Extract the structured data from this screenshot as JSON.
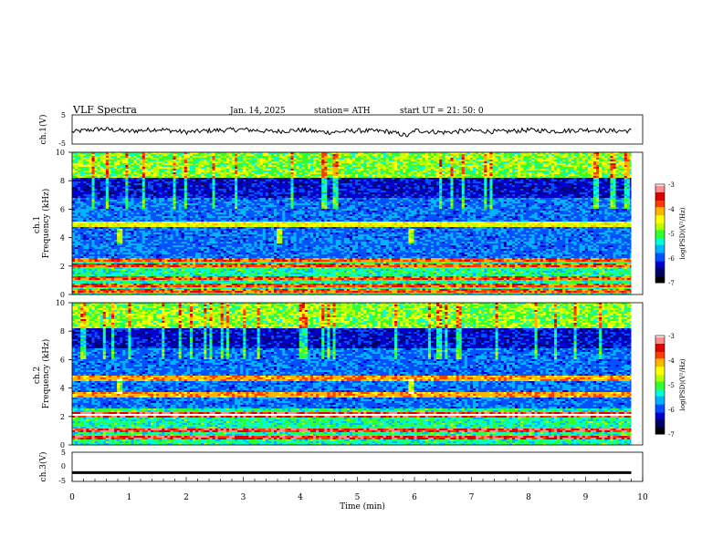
{
  "header": {
    "title": "VLF  Spectra",
    "date": "Jan.  14,  2025",
    "station": "station= ATH",
    "start": "start  UT  =   21: 50: 0"
  },
  "colors": {
    "colormap": [
      "#000000",
      "#000066",
      "#0000cc",
      "#0050ff",
      "#00b4ff",
      "#00ffd2",
      "#32ff32",
      "#b4ff00",
      "#ffff00",
      "#ffb400",
      "#ff3c00",
      "#dc0000",
      "#ff8c8c",
      "#ffffff"
    ]
  },
  "chart_data": [
    {
      "type": "line",
      "ylabel": "ch.1(V)",
      "ylim": [
        -5,
        5
      ],
      "ytick_labels": [
        "5",
        "-5"
      ],
      "xlim": [
        0,
        10
      ],
      "description_series": "noisy waveform near 0 V",
      "x": [
        0,
        0.5,
        1,
        1.5,
        2,
        2.5,
        3,
        3.5,
        4,
        4.5,
        5,
        5.5,
        5.9,
        6,
        6.5,
        7,
        7.5,
        8,
        8.5,
        9,
        9.5,
        9.8
      ],
      "y": [
        -0.8,
        0.2,
        -0.6,
        0.1,
        -0.9,
        -0.3,
        0.0,
        -0.7,
        -0.2,
        -1.0,
        -0.4,
        -0.6,
        -2.2,
        -0.3,
        -1.0,
        -0.4,
        -0.8,
        -0.2,
        -0.6,
        -0.1,
        -0.5,
        -0.4
      ]
    },
    {
      "type": "heatmap",
      "ylabel": "ch.1\nFrequency  (kHz)",
      "ylim": [
        0,
        10
      ],
      "ytick_labels": [
        "0",
        "2",
        "4",
        "6",
        "8",
        "10"
      ],
      "xlim": [
        0,
        10
      ],
      "colorbar": {
        "label": "log(PSD)(V²/Hz)",
        "range": [
          -7,
          -3
        ],
        "tick_labels": [
          "-3",
          "-4",
          "-5",
          "-6",
          "-7"
        ]
      },
      "features": {
        "bright_bands_khz": [
          0.3,
          0.6,
          1.2,
          2.1,
          2.4,
          4.8,
          5.0
        ],
        "bursts_min": [
          0.8,
          3.6,
          5.9
        ]
      }
    },
    {
      "type": "heatmap",
      "ylabel": "ch.2\nFrequency  (kHz)",
      "ylim": [
        0,
        10
      ],
      "ytick_labels": [
        "0",
        "2",
        "4",
        "6",
        "8",
        "10"
      ],
      "xlim": [
        0,
        10
      ],
      "colorbar": {
        "label": "log(PSD)(V²/Hz)",
        "range": [
          -7,
          -3
        ],
        "tick_labels": [
          "-3",
          "-4",
          "-5",
          "-6",
          "-7"
        ]
      },
      "features": {
        "bright_bands_khz": [
          0.5,
          1.0,
          2.0,
          2.2,
          3.4,
          3.6,
          4.6,
          4.8
        ],
        "bursts_min": [
          0.8,
          5.9
        ]
      }
    },
    {
      "type": "line",
      "ylabel": "ch.3(V)",
      "ylim": [
        -5,
        5
      ],
      "ytick_labels": [
        "5",
        "0",
        "-5"
      ],
      "xlim": [
        0,
        10
      ],
      "x": [
        0,
        9.8
      ],
      "y": [
        -2,
        -2
      ]
    }
  ],
  "xaxis": {
    "label": "Time  (min)",
    "tick_labels": [
      "0",
      "1",
      "2",
      "3",
      "4",
      "5",
      "6",
      "7",
      "8",
      "9",
      "10"
    ]
  }
}
